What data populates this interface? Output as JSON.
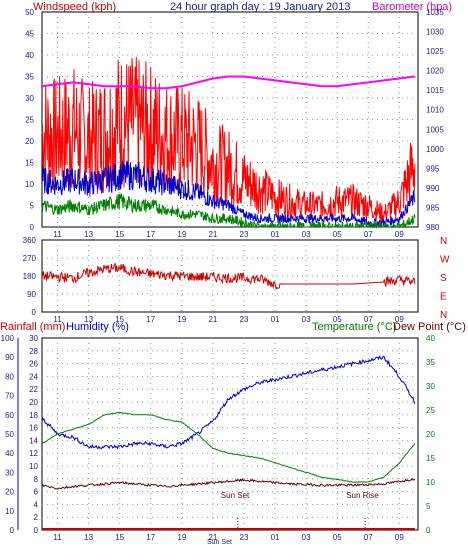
{
  "header": {
    "wind_label": "Windspeed (kph)",
    "title": "24 hour graph day : 19 January 2013",
    "baro_label": "Barometer (hpa)"
  },
  "footer": {
    "rain_label": "Rainfall (mm)",
    "humidity_label": "Humidity (%)",
    "temp_label": "Temperature (°C)",
    "dew_label": "Dew Point (°C)",
    "sunset_label": "Sun Set",
    "sunrise_label": "Sun Rise",
    "sunset_axis_label": "Sun Set"
  },
  "colors": {
    "wind_gust": "#ff0000",
    "wind_avg": "#0000cc",
    "wind_min": "#008000",
    "barometer": "#ff00ff",
    "direction": "#cc0000",
    "humidity": "#0000cc",
    "temperature": "#008000",
    "dew_point": "#660000",
    "rainfall": "#cc0000",
    "axis_text": "#1b1b8f",
    "grid": "#6fa0a0"
  },
  "chart_data": [
    {
      "type": "line",
      "id": "wind",
      "x_ticks": [
        "11",
        "13",
        "15",
        "17",
        "19",
        "21",
        "23",
        "01",
        "03",
        "05",
        "07",
        "09"
      ],
      "ylim": [
        0,
        50
      ],
      "y_ticks": [
        "0",
        "5",
        "10",
        "15",
        "20",
        "25",
        "30",
        "35",
        "40",
        "45",
        "50"
      ],
      "y2lim": [
        980,
        1035
      ],
      "y2_ticks": [
        "980",
        "985",
        "990",
        "995",
        "1000",
        "1005",
        "1010",
        "1015",
        "1020",
        "1025",
        "1030",
        "1035"
      ],
      "x": [
        10,
        11,
        12,
        13,
        14,
        15,
        16,
        17,
        18,
        19,
        20,
        21,
        22,
        23,
        24,
        25,
        26,
        27,
        28,
        29,
        30,
        31,
        32,
        33,
        34
      ],
      "series": [
        {
          "name": "gust",
          "values": [
            22,
            21,
            23,
            20,
            22,
            25,
            24,
            23,
            21,
            20,
            19,
            15,
            14,
            11,
            9,
            7,
            6,
            5,
            5,
            6,
            6,
            5,
            3,
            6,
            15
          ]
        },
        {
          "name": "average",
          "values": [
            11,
            10,
            11,
            10,
            11,
            12,
            12,
            11,
            10,
            9,
            8,
            6,
            5,
            3,
            2,
            2,
            2,
            2,
            2,
            2,
            2,
            1,
            1,
            2,
            7
          ]
        },
        {
          "name": "low",
          "values": [
            5,
            4,
            5,
            4,
            5,
            6,
            5,
            5,
            4,
            3,
            3,
            2,
            2,
            1,
            0,
            0,
            0,
            0,
            0,
            0,
            0,
            0,
            0,
            0,
            2
          ]
        },
        {
          "name": "barometer",
          "values": [
            1016,
            1016.5,
            1017,
            1016.5,
            1016,
            1016,
            1016,
            1015.5,
            1015.5,
            1016,
            1017,
            1018,
            1018.5,
            1018.5,
            1018,
            1017.5,
            1017,
            1016.5,
            1016,
            1016,
            1016.5,
            1017,
            1017.5,
            1018,
            1018.5
          ]
        }
      ]
    },
    {
      "type": "line",
      "id": "direction",
      "x_ticks": [
        "11",
        "13",
        "15",
        "17",
        "19",
        "21",
        "23",
        "01",
        "03",
        "05",
        "07",
        "09"
      ],
      "ylim": [
        0,
        360
      ],
      "y_ticks": [
        "0",
        "90",
        "180",
        "270",
        "360"
      ],
      "right_labels": [
        "N",
        "W",
        "S",
        "E",
        "N"
      ],
      "x": [
        10,
        11,
        12,
        13,
        14,
        15,
        16,
        17,
        18,
        19,
        20,
        21,
        22,
        23,
        24,
        25,
        26,
        27,
        28,
        29,
        30,
        31,
        32,
        33,
        34
      ],
      "series": [
        {
          "name": "direction",
          "values": [
            180,
            175,
            170,
            195,
            215,
            220,
            200,
            190,
            185,
            180,
            175,
            175,
            170,
            170,
            165,
            140,
            140,
            140,
            140,
            140,
            140,
            145,
            150,
            160,
            150
          ]
        }
      ]
    },
    {
      "type": "line",
      "id": "temp_humidity",
      "x_ticks": [
        "11",
        "13",
        "15",
        "17",
        "19",
        "21",
        "23",
        "01",
        "03",
        "05",
        "07",
        "09"
      ],
      "y_humidity_ticks": [
        "0",
        "10",
        "20",
        "30",
        "40",
        "50",
        "60",
        "70",
        "80",
        "90",
        "100"
      ],
      "y_rain_ticks": [
        "0",
        "2",
        "4",
        "6",
        "8",
        "10",
        "12",
        "14",
        "16",
        "18",
        "20",
        "22",
        "24",
        "26",
        "28",
        "30"
      ],
      "y_temp_ticks": [
        "0",
        "5",
        "10",
        "15",
        "20",
        "25",
        "30",
        "35",
        "40"
      ],
      "rain_lim": [
        0,
        30
      ],
      "temp_lim": [
        0,
        40
      ],
      "x": [
        10,
        11,
        12,
        13,
        14,
        15,
        16,
        17,
        18,
        19,
        20,
        21,
        22,
        23,
        24,
        25,
        26,
        27,
        28,
        29,
        30,
        31,
        32,
        33,
        34
      ],
      "series": [
        {
          "name": "humidity",
          "values": [
            17.5,
            15,
            14.5,
            13,
            13,
            13,
            13.5,
            13.5,
            13,
            13.5,
            15,
            17,
            20.5,
            22,
            23,
            23.5,
            24,
            24.5,
            25,
            25.5,
            26,
            26.5,
            27,
            24,
            20
          ]
        },
        {
          "name": "temperature",
          "values": [
            18,
            20,
            21,
            22,
            24,
            24.5,
            24,
            24,
            23,
            22.5,
            20,
            17,
            16,
            15.5,
            15,
            14,
            13,
            12,
            11,
            10.5,
            10,
            10,
            11,
            14,
            18
          ]
        },
        {
          "name": "dew_point",
          "values": [
            7,
            6.5,
            6.8,
            7,
            7.2,
            7.4,
            7.2,
            7.0,
            6.8,
            7.0,
            7.2,
            7.4,
            7.6,
            7.8,
            7.6,
            7.4,
            7.2,
            7.1,
            7.0,
            7.0,
            7.0,
            7.1,
            7.2,
            7.6,
            8.0
          ]
        },
        {
          "name": "rainfall",
          "values": [
            0,
            0,
            0,
            0,
            0,
            0,
            0,
            0,
            0,
            0,
            0,
            0,
            0,
            0,
            0,
            0,
            0,
            0,
            0,
            0,
            0,
            0,
            0,
            0,
            0
          ]
        }
      ],
      "sunset_x": 22.6,
      "sunrise_x": 30.8
    }
  ]
}
